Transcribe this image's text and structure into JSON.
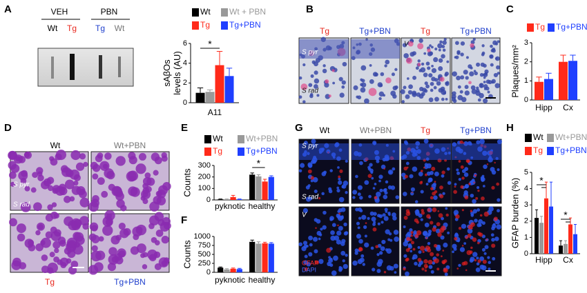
{
  "panel_labels": [
    "A",
    "B",
    "C",
    "D",
    "E",
    "F",
    "G",
    "H"
  ],
  "blot": {
    "groups": [
      "VEH",
      "PBN"
    ],
    "lanes": [
      "Wt",
      "Tg",
      "Tg",
      "Wt"
    ]
  },
  "panel_b": {
    "columns": [
      "Tg",
      "Tg+PBN",
      "Tg",
      "Tg+PBN"
    ],
    "regions": [
      "S pyr",
      "S rad",
      "V"
    ]
  },
  "panel_d": {
    "top": [
      "Wt",
      "Wt+PBN"
    ],
    "bottom": [
      "Tg",
      "Tg+PBN"
    ],
    "regions": [
      "S pyr",
      "S rad"
    ]
  },
  "panel_g": {
    "columns": [
      "Wt",
      "Wt+PBN",
      "Tg",
      "Tg+PBN"
    ],
    "regions": [
      "S pyr",
      "S rad",
      "V"
    ],
    "stains": [
      "GFAP",
      "DAPI"
    ]
  },
  "chart_data": [
    {
      "type": "bar",
      "ylabel": [
        "sAβOs",
        "levels (AU)"
      ],
      "categories": [
        "A11"
      ],
      "series": [
        {
          "name": "Wt",
          "color": "#000000",
          "values": [
            1.0
          ],
          "errors": [
            0.5
          ]
        },
        {
          "name": "Wt + PBN",
          "color": "#999999",
          "values": [
            1.1
          ],
          "errors": [
            0.2
          ]
        },
        {
          "name": "Tg",
          "color": "#ff2a1a",
          "values": [
            3.8
          ],
          "errors": [
            1.4
          ]
        },
        {
          "name": "Tg+PBN",
          "color": "#1f3fff",
          "values": [
            2.7
          ],
          "errors": [
            0.8
          ]
        }
      ],
      "ylim": [
        0,
        6
      ],
      "yticks": [
        0,
        2,
        4,
        6
      ],
      "annotations": [
        "*"
      ]
    },
    {
      "type": "bar",
      "ylabel": [
        "Plaques/mm²"
      ],
      "categories": [
        "Hipp",
        "Cx"
      ],
      "series": [
        {
          "name": "Tg",
          "color": "#ff2a1a",
          "values": [
            0.95,
            2.0
          ],
          "errors": [
            0.25,
            0.35
          ]
        },
        {
          "name": "Tg+PBN",
          "color": "#1f3fff",
          "values": [
            1.1,
            2.05
          ],
          "errors": [
            0.3,
            0.3
          ]
        }
      ],
      "ylim": [
        0,
        3
      ],
      "yticks": [
        0,
        1,
        2,
        3
      ],
      "annotations": []
    },
    {
      "type": "bar",
      "ylabel": [
        "Counts"
      ],
      "categories": [
        "pyknotic",
        "healthy"
      ],
      "series": [
        {
          "name": "Wt",
          "color": "#000000",
          "values": [
            5,
            220
          ],
          "errors": [
            3,
            15
          ]
        },
        {
          "name": "Wt+PBN",
          "color": "#999999",
          "values": [
            5,
            205
          ],
          "errors": [
            3,
            15
          ]
        },
        {
          "name": "Tg",
          "color": "#ff2a1a",
          "values": [
            25,
            160
          ],
          "errors": [
            15,
            20
          ]
        },
        {
          "name": "Tg+PBN",
          "color": "#1f3fff",
          "values": [
            5,
            200
          ],
          "errors": [
            3,
            10
          ]
        }
      ],
      "ylim": [
        0,
        300
      ],
      "yticks": [
        0,
        100,
        200,
        300
      ],
      "annotations": [
        "*"
      ]
    },
    {
      "type": "bar",
      "ylabel": [
        "Counts"
      ],
      "categories": [
        "pyknotic",
        "healthy"
      ],
      "series": [
        {
          "name": "Wt",
          "color": "#000000",
          "values": [
            130,
            850
          ],
          "errors": [
            20,
            50
          ]
        },
        {
          "name": "Wt+PBN",
          "color": "#999999",
          "values": [
            80,
            800
          ],
          "errors": [
            20,
            50
          ]
        },
        {
          "name": "Tg",
          "color": "#ff2a1a",
          "values": [
            100,
            810
          ],
          "errors": [
            20,
            30
          ]
        },
        {
          "name": "Tg+PBN",
          "color": "#1f3fff",
          "values": [
            90,
            800
          ],
          "errors": [
            20,
            30
          ]
        }
      ],
      "ylim": [
        0,
        1000
      ],
      "yticks": [
        0,
        250,
        500,
        750,
        1000
      ],
      "annotations": []
    },
    {
      "type": "bar",
      "ylabel": [
        "GFAP burden (%)"
      ],
      "categories": [
        "Hipp",
        "Cx"
      ],
      "series": [
        {
          "name": "Wt",
          "color": "#000000",
          "values": [
            2.2,
            0.5
          ],
          "errors": [
            0.5,
            0.3
          ]
        },
        {
          "name": "Wt+PBN",
          "color": "#999999",
          "values": [
            1.9,
            0.6
          ],
          "errors": [
            0.4,
            0.2
          ]
        },
        {
          "name": "Tg",
          "color": "#ff2a1a",
          "values": [
            3.4,
            1.8
          ],
          "errors": [
            1.0,
            0.4
          ]
        },
        {
          "name": "Tg+PBN",
          "color": "#1f3fff",
          "values": [
            2.9,
            1.2
          ],
          "errors": [
            1.5,
            0.6
          ]
        }
      ],
      "ylim": [
        0,
        5
      ],
      "yticks": [
        0,
        1,
        2,
        3,
        4,
        5
      ],
      "annotations": [
        "*",
        "*"
      ]
    }
  ]
}
